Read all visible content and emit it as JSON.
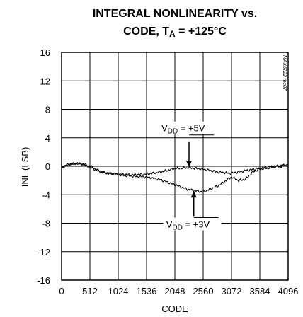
{
  "figure_id": "MAX5722 toc07",
  "chart_data": {
    "type": "line",
    "title_line1": "INTEGRAL NONLINEARITY vs.",
    "title_line2": {
      "prefix": "CODE, T",
      "sub": "A",
      "suffix": " = +125°C"
    },
    "xlabel": "CODE",
    "ylabel": "INL (LSB)",
    "xlim": [
      0,
      4096
    ],
    "ylim": [
      -16,
      16
    ],
    "xticks": [
      0,
      512,
      1024,
      1536,
      2048,
      2560,
      3072,
      3584,
      4096
    ],
    "yticks": [
      16,
      12,
      8,
      4,
      0,
      -4,
      -8,
      -12,
      -16
    ],
    "grid": true,
    "series": [
      {
        "name": "VDD = +5V",
        "label_main": "V",
        "label_sub": "DD",
        "label_rest": " = +5V",
        "x": [
          0,
          128,
          256,
          384,
          512,
          640,
          768,
          1024,
          1280,
          1536,
          1792,
          2048,
          2304,
          2560,
          2816,
          3072,
          3328,
          3584,
          3840,
          4096
        ],
        "y": [
          -0.2,
          0.2,
          0.4,
          0.3,
          -0.1,
          -0.6,
          -0.9,
          -1.1,
          -1.2,
          -1.1,
          -0.8,
          -0.3,
          -0.2,
          -0.4,
          -0.8,
          -1.0,
          -0.6,
          -0.3,
          0.0,
          0.2
        ]
      },
      {
        "name": "VDD = +3V",
        "label_main": "V",
        "label_sub": "DD",
        "label_rest": " = +3V",
        "x": [
          0,
          128,
          256,
          384,
          512,
          640,
          768,
          1024,
          1280,
          1536,
          1792,
          2048,
          2304,
          2560,
          2816,
          3072,
          3200,
          3328,
          3456,
          3584,
          3840,
          4096
        ],
        "y": [
          -0.1,
          0.3,
          0.4,
          0.3,
          0.0,
          -0.5,
          -0.9,
          -1.2,
          -1.4,
          -1.5,
          -1.9,
          -2.6,
          -3.3,
          -3.6,
          -2.8,
          -1.5,
          -2.0,
          -1.8,
          -0.8,
          -0.4,
          -0.1,
          0.1
        ]
      }
    ],
    "annotations": [
      {
        "series": 0,
        "x": 2304,
        "text_y": 5.0,
        "arrow_from": 3.5,
        "arrow_to": -0.2
      },
      {
        "series": 1,
        "x": 2390,
        "text_y": -8.5,
        "arrow_from": -7.0,
        "arrow_to": -3.4
      }
    ]
  }
}
